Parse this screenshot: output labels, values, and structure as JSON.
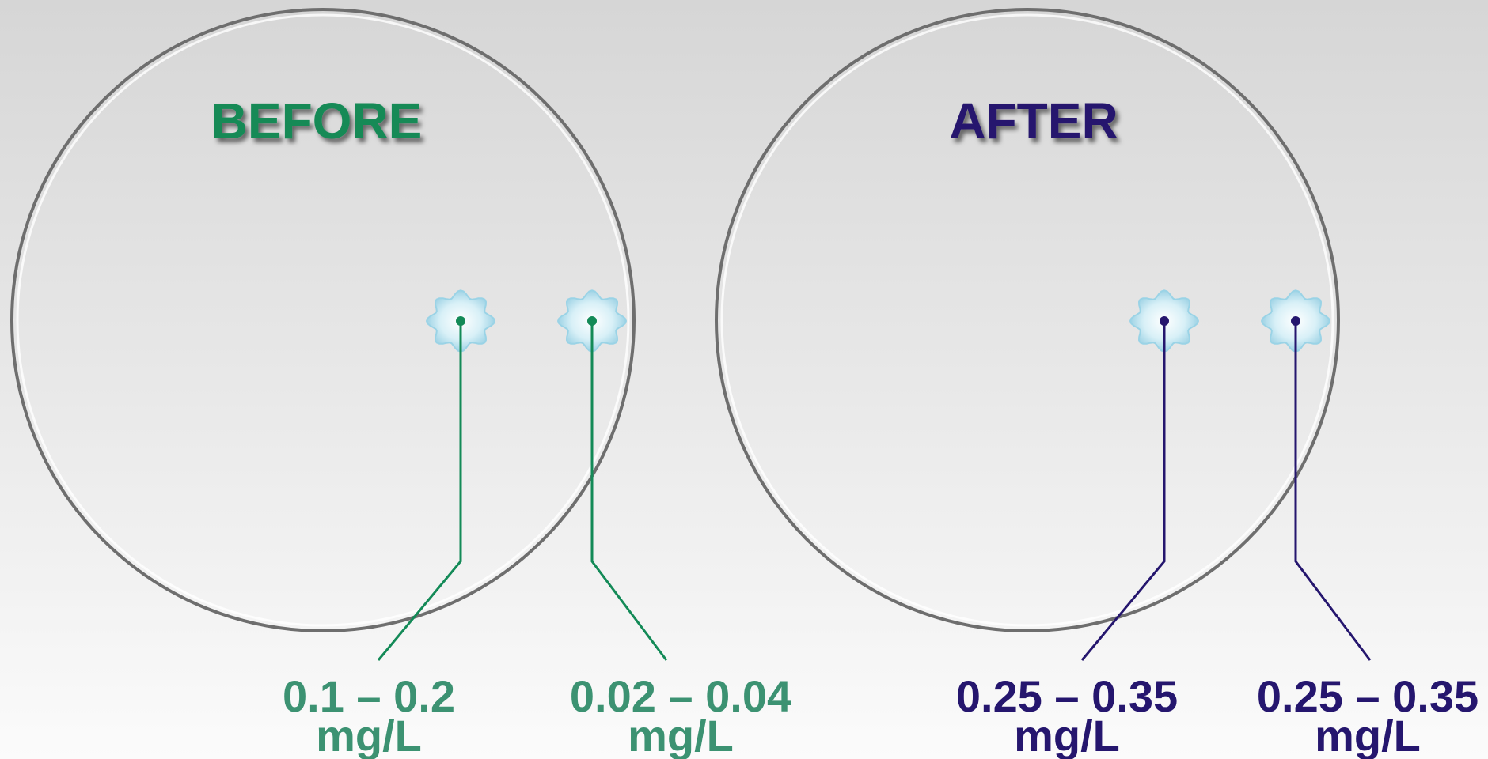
{
  "colors": {
    "before": "#138a57",
    "after": "#25166e",
    "label_before": "#3c9272",
    "circle_stroke": "#6e6e6e",
    "cell_fill": "#bfe6f1"
  },
  "panels": [
    {
      "title": "BEFORE",
      "points": [
        {
          "value": "0.1 – 0.2",
          "unit": "mg/L"
        },
        {
          "value": "0.02 – 0.04",
          "unit": "mg/L"
        }
      ]
    },
    {
      "title": "AFTER",
      "points": [
        {
          "value": "0.25 – 0.35",
          "unit": "mg/L"
        },
        {
          "value": "0.25 – 0.35",
          "unit": "mg/L"
        }
      ]
    }
  ]
}
